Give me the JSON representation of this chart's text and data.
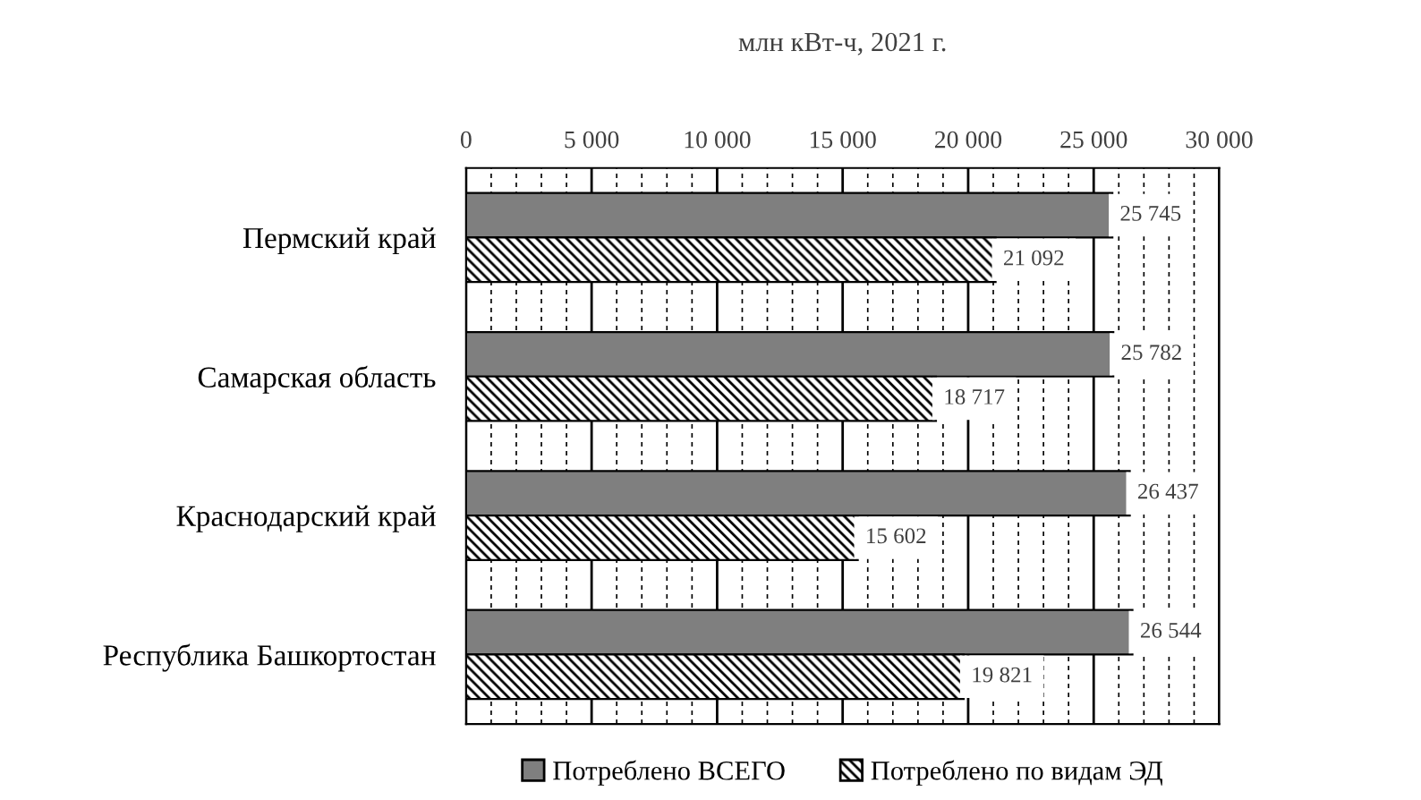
{
  "chart_data": {
    "type": "bar",
    "orientation": "horizontal",
    "title": "млн кВт-ч, 2021 г.",
    "categories": [
      "Пермский край",
      "Самарская область",
      "Краснодарский край",
      "Республика Башкортостан"
    ],
    "series": [
      {
        "name": "Потреблено ВСЕГО",
        "color": "#7f7f7f",
        "values": [
          25745,
          25782,
          26437,
          26544
        ],
        "value_labels": [
          "25 745",
          "25 782",
          "26 437",
          "26 544"
        ]
      },
      {
        "name": "Потреблено по видам ЭД",
        "color": "#000000",
        "values": [
          21092,
          18717,
          15602,
          19821
        ],
        "value_labels": [
          "21 092",
          "18 717",
          "15 602",
          "19 821"
        ]
      }
    ],
    "xlim": [
      0,
      30000
    ],
    "xticks": [
      0,
      {
        "value": 1000,
        "label": null
      },
      {
        "value": 2000,
        "label": null
      },
      {
        "value": 3000,
        "label": null
      },
      {
        "value": 4000,
        "label": null
      },
      {
        "value": 5000,
        "label": "5 000"
      },
      {
        "value": 6000,
        "label": null
      },
      {
        "value": 7000,
        "label": null
      },
      {
        "value": 8000,
        "label": null
      },
      {
        "value": 9000,
        "label": null
      },
      {
        "value": 10000,
        "label": "10 000"
      },
      {
        "value": 11000,
        "label": null
      },
      {
        "value": 12000,
        "label": null
      },
      {
        "value": 13000,
        "label": null
      },
      {
        "value": 14000,
        "label": null
      },
      {
        "value": 15000,
        "label": "15 000"
      },
      {
        "value": 16000,
        "label": null
      },
      {
        "value": 17000,
        "label": null
      },
      {
        "value": 18000,
        "label": null
      },
      {
        "value": 19000,
        "label": null
      },
      {
        "value": 20000,
        "label": "20 000"
      },
      {
        "value": 21000,
        "label": null
      },
      {
        "value": 22000,
        "label": null
      },
      {
        "value": 23000,
        "label": null
      },
      {
        "value": 24000,
        "label": null
      },
      {
        "value": 25000,
        "label": "25 000"
      },
      {
        "value": 26000,
        "label": null
      },
      {
        "value": 27000,
        "label": null
      },
      {
        "value": 28000,
        "label": null
      },
      {
        "value": 29000,
        "label": null
      },
      {
        "value": 30000,
        "label": "30 000"
      }
    ],
    "grid": "x",
    "legend": "bottom"
  }
}
